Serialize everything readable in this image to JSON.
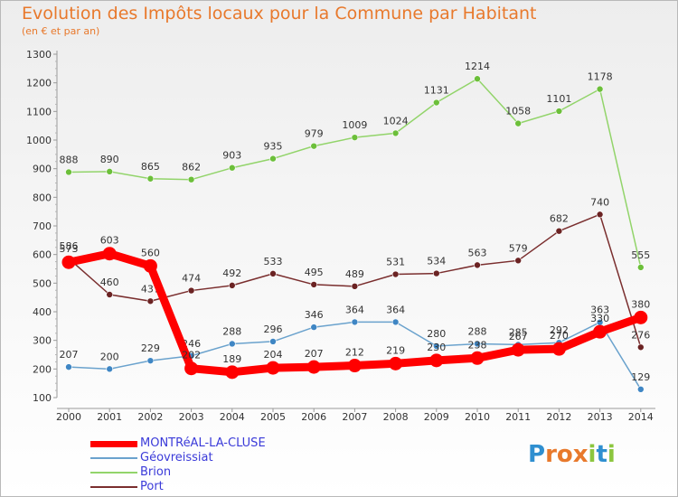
{
  "title": "Evolution des Impôts locaux pour la Commune par Habitant",
  "subtitle": "(en € et par an)",
  "logo": {
    "text": "Proxiti",
    "letters": [
      {
        "ch": "P",
        "color": "#2f8fd0"
      },
      {
        "ch": "r",
        "color": "#e8792c"
      },
      {
        "ch": "o",
        "color": "#e8792c"
      },
      {
        "ch": "x",
        "color": "#e8792c"
      },
      {
        "ch": "i",
        "color": "#8cc63f"
      },
      {
        "ch": "t",
        "color": "#2f8fd0"
      },
      {
        "ch": "i",
        "color": "#8cc63f"
      }
    ]
  },
  "chart_data": {
    "type": "line",
    "title": "Evolution des Impôts locaux pour la Commune par Habitant",
    "ylabel": "(en € et par an)",
    "xlabel": "",
    "ylim": [
      100,
      1300
    ],
    "yticks": [
      100,
      200,
      300,
      400,
      500,
      600,
      700,
      800,
      900,
      1000,
      1100,
      1200,
      1300
    ],
    "categories": [
      "2000",
      "2001",
      "2002",
      "2003",
      "2004",
      "2005",
      "2006",
      "2007",
      "2008",
      "2009",
      "2010",
      "2011",
      "2012",
      "2013",
      "2014"
    ],
    "grid": false,
    "legend_position": "bottom-left",
    "series": [
      {
        "name": "Brion",
        "color": "#92d46a",
        "dot": "#6cbf3a",
        "bold": false,
        "values": [
          888,
          890,
          865,
          862,
          903,
          935,
          979,
          1009,
          1024,
          1131,
          1214,
          1058,
          1101,
          1178,
          555
        ],
        "labels": [
          "888",
          "890",
          "865",
          "862",
          "903",
          "935",
          "979",
          "1009",
          "1024",
          "1131",
          "1214",
          "1058",
          "1101",
          "1178",
          "555"
        ]
      },
      {
        "name": "Port",
        "color": "#7a2e2e",
        "dot": "#6b2323",
        "bold": false,
        "values": [
          586,
          460,
          437,
          474,
          492,
          533,
          495,
          489,
          531,
          534,
          563,
          579,
          682,
          740,
          276
        ],
        "labels": [
          "586",
          "460",
          "437",
          "474",
          "492",
          "533",
          "495",
          "489",
          "531",
          "534",
          "563",
          "579",
          "682",
          "740",
          "276"
        ]
      },
      {
        "name": "Géovreissiat",
        "color": "#6aa2cd",
        "dot": "#3f86c4",
        "bold": false,
        "values": [
          207,
          200,
          229,
          246,
          288,
          296,
          346,
          364,
          364,
          280,
          288,
          285,
          292,
          363,
          129
        ],
        "labels": [
          "207",
          "200",
          "229",
          "246",
          "288",
          "296",
          "346",
          "364",
          "364",
          "280",
          "288",
          "285",
          "292",
          "363",
          "129"
        ]
      },
      {
        "name": "MONTRéAL-LA-CLUSE",
        "color": "#ff0000",
        "dot": "#ff0000",
        "bold": true,
        "values": [
          573,
          603,
          560,
          202,
          189,
          204,
          207,
          212,
          219,
          230,
          238,
          267,
          270,
          330,
          380
        ],
        "labels": [
          "573",
          "603",
          "560",
          "202",
          "189",
          "204",
          "207",
          "212",
          "219",
          "230",
          "238",
          "267",
          "270",
          "330",
          "380"
        ]
      }
    ],
    "legend": [
      {
        "name": "MONTRéAL-LA-CLUSE",
        "color": "#ff0000",
        "text_color": "#3b3bd9",
        "bold": true
      },
      {
        "name": "Géovreissiat",
        "color": "#6aa2cd",
        "text_color": "#3b3bd9",
        "bold": false
      },
      {
        "name": "Brion",
        "color": "#92d46a",
        "text_color": "#3b3bd9",
        "bold": false
      },
      {
        "name": "Port",
        "color": "#7a2e2e",
        "text_color": "#3b3bd9",
        "bold": false
      }
    ]
  }
}
